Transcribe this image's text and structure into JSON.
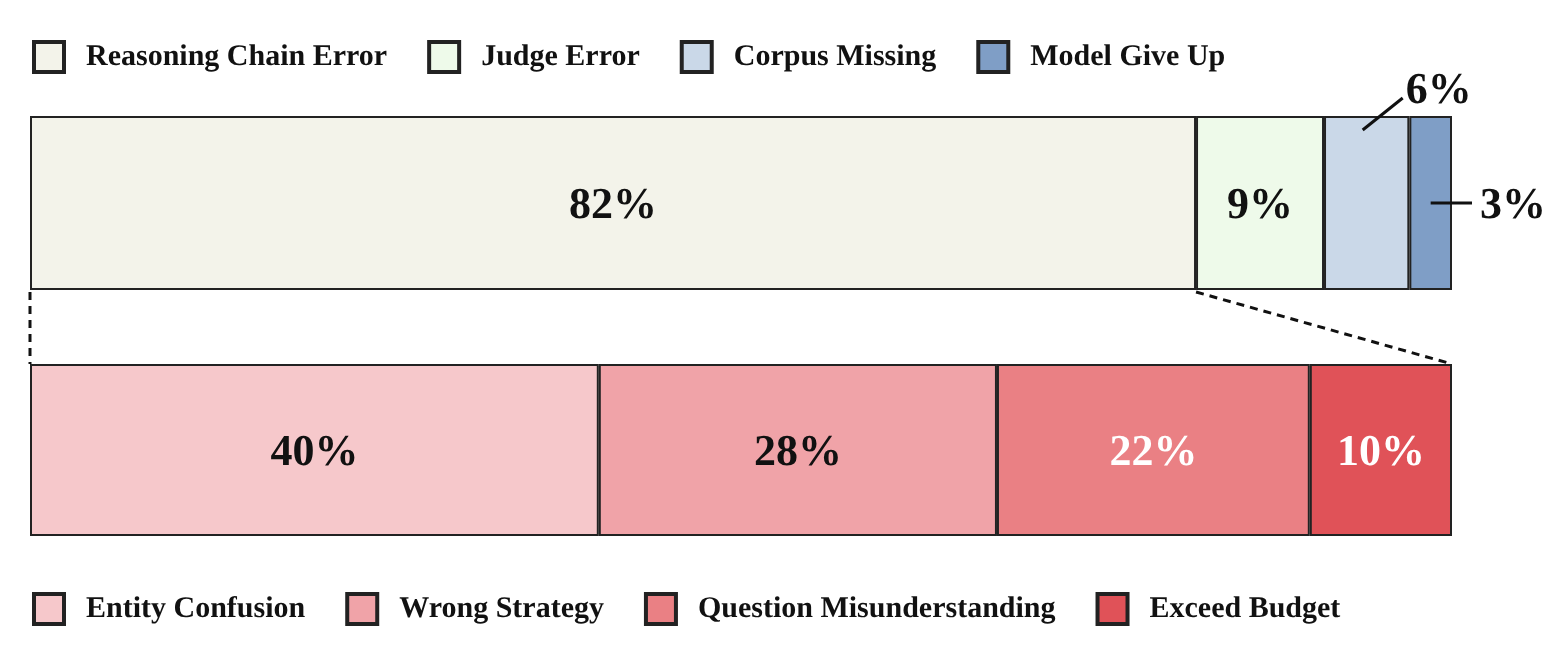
{
  "chart_data": [
    {
      "type": "bar",
      "orientation": "horizontal",
      "stacked": true,
      "categories": [
        null
      ],
      "legend": "top left",
      "series": [
        {
          "name": "Reasoning Chain Error",
          "color": "#f3f3ea",
          "values": [
            82
          ],
          "value_labels": [
            "82%"
          ]
        },
        {
          "name": "Judge Error",
          "color": "#eefaea",
          "values": [
            9
          ],
          "value_labels": [
            "9%"
          ]
        },
        {
          "name": "Corpus Missing",
          "color": "#cad8e8",
          "values": [
            6
          ],
          "value_labels": [
            "6%"
          ]
        },
        {
          "name": "Model Give Up",
          "color": "#7f9ec6",
          "values": [
            3
          ],
          "value_labels": [
            "3%"
          ]
        }
      ]
    },
    {
      "type": "bar",
      "orientation": "horizontal",
      "stacked": true,
      "categories": [
        null
      ],
      "legend": "bottom left",
      "series": [
        {
          "name": "Entity Confusion",
          "color": "#f6c8cb",
          "values": [
            40
          ],
          "value_labels": [
            "40%"
          ]
        },
        {
          "name": "Wrong Strategy",
          "color": "#f0a3a8",
          "values": [
            28
          ],
          "value_labels": [
            "28%"
          ]
        },
        {
          "name": "Question Misunderstanding",
          "color": "#ea8084",
          "values": [
            22
          ],
          "value_labels": [
            "22%"
          ]
        },
        {
          "name": "Exceed Budget",
          "color": "#e05258",
          "values": [
            10
          ],
          "value_labels": [
            "10%"
          ]
        }
      ]
    }
  ]
}
